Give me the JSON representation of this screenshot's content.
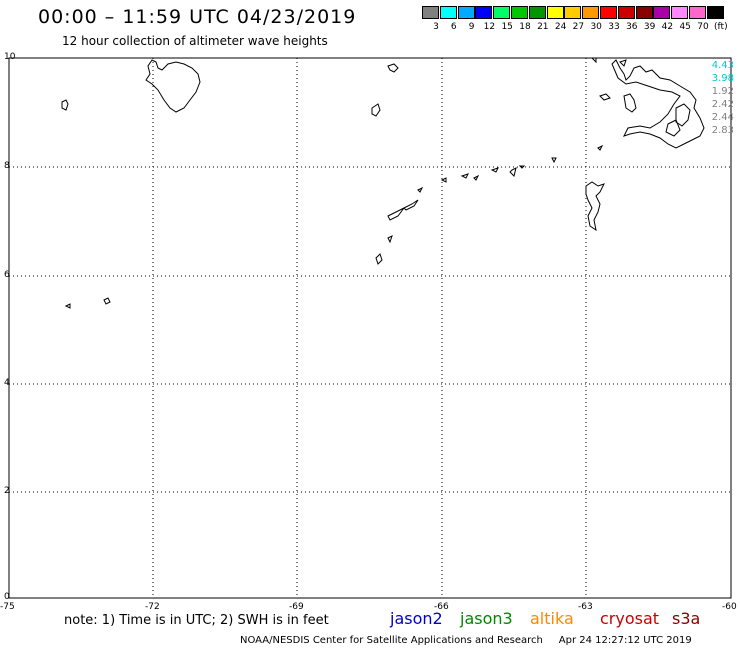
{
  "header": {
    "title": "00:00 – 11:59 UTC 04/23/2019",
    "subtitle": "12 hour collection of altimeter wave heights"
  },
  "colorbar": {
    "colors": [
      "#808080",
      "#00ffff",
      "#00aaff",
      "#0000ff",
      "#00ff66",
      "#00c800",
      "#009600",
      "#ffff00",
      "#ffcc00",
      "#ff9900",
      "#ff0000",
      "#cc0000",
      "#880000",
      "#aa00aa",
      "#ff88ff",
      "#ff66cc",
      "#000000"
    ],
    "labels": [
      "3",
      "6",
      "9",
      "12",
      "15",
      "18",
      "21",
      "24",
      "27",
      "30",
      "33",
      "36",
      "39",
      "42",
      "45",
      "70",
      "(ft)"
    ]
  },
  "axes": {
    "y_ticks": [
      "10",
      "8",
      "6",
      "4",
      "2",
      "0"
    ],
    "x_ticks": [
      "-75",
      "-72",
      "-69",
      "-66",
      "-63",
      "-60"
    ]
  },
  "wave_labels": [
    {
      "text": "4.43",
      "color": "#00cccc"
    },
    {
      "text": "3.98",
      "color": "#00cccc"
    },
    {
      "text": "1.92",
      "color": "#808080"
    },
    {
      "text": "2.42",
      "color": "#808080"
    },
    {
      "text": "2.44",
      "color": "#808080"
    },
    {
      "text": "2.83",
      "color": "#808080"
    }
  ],
  "footer": {
    "note": "note: 1) Time is in UTC; 2) SWH is in feet",
    "satellites": [
      {
        "name": "jason2",
        "color": "#0000cc"
      },
      {
        "name": "jason3",
        "color": "#008800"
      },
      {
        "name": "altika",
        "color": "#ff8800"
      },
      {
        "name": "cryosat",
        "color": "#cc0000"
      },
      {
        "name": "s3a",
        "color": "#880000"
      }
    ],
    "credit": "NOAA/NESDIS Center for Satellite Applications and Research",
    "timestamp": "Apr 24 12:27:12 UTC 2019"
  }
}
